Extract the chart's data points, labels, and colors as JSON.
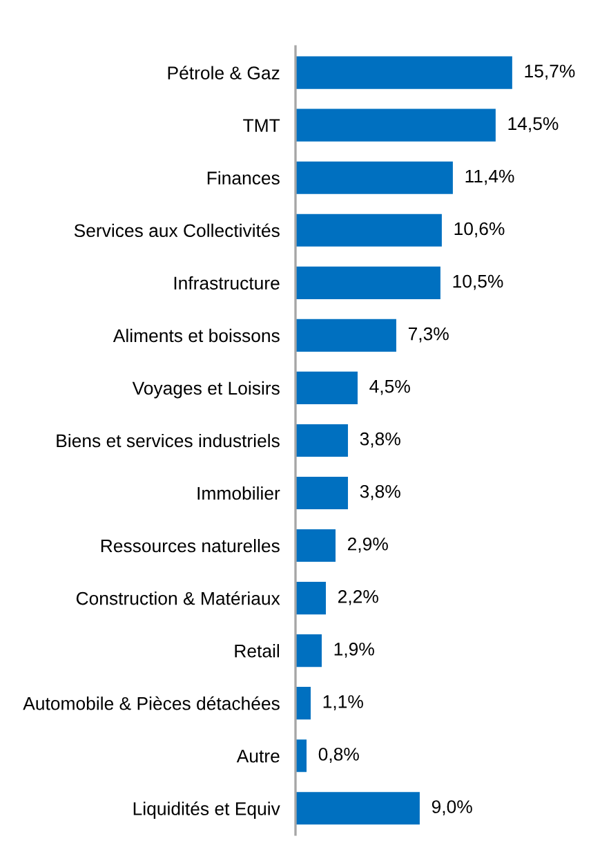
{
  "chart_data": {
    "type": "bar",
    "orientation": "horizontal",
    "categories": [
      "Pétrole & Gaz",
      "TMT",
      "Finances",
      "Services aux Collectivités",
      "Infrastructure",
      "Aliments et boissons",
      "Voyages et Loisirs",
      "Biens et services industriels",
      "Immobilier",
      "Ressources naturelles",
      "Construction & Matériaux",
      "Retail",
      "Automobile & Pièces détachées",
      "Autre",
      "Liquidités et Equiv"
    ],
    "values": [
      15.7,
      14.5,
      11.4,
      10.6,
      10.5,
      7.3,
      4.5,
      3.8,
      3.8,
      2.9,
      2.2,
      1.9,
      1.1,
      0.8,
      9.0
    ],
    "value_labels": [
      "15,7%",
      "14,5%",
      "11,4%",
      "10,6%",
      "10,5%",
      "7,3%",
      "4,5%",
      "3,8%",
      "3,8%",
      "2,9%",
      "2,2%",
      "1,9%",
      "1,1%",
      "0,8%",
      "9,0%"
    ],
    "color": "#0070c0",
    "grid": false,
    "legend": false
  }
}
